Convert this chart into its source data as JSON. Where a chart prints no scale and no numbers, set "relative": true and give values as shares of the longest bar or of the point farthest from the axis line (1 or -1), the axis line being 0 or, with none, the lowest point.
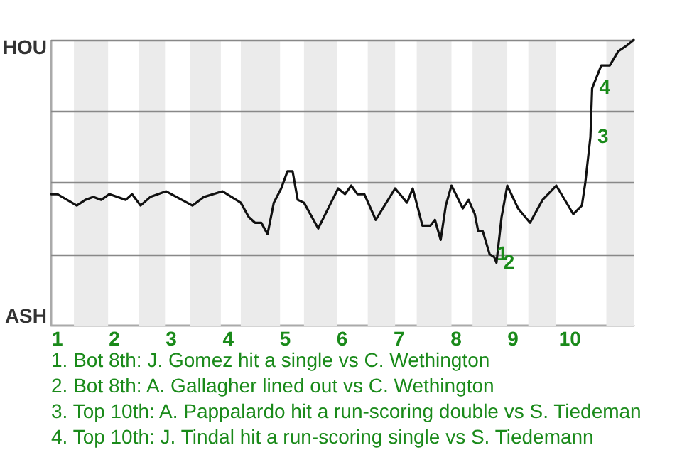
{
  "chart_data": {
    "type": "line",
    "relative": true,
    "x": [
      0.89,
      1.0,
      1.34,
      1.49,
      1.63,
      1.77,
      1.91,
      2.2,
      2.31,
      2.46,
      2.63,
      2.91,
      3.37,
      3.57,
      3.9,
      4.22,
      4.36,
      4.47,
      4.58,
      4.69,
      4.8,
      4.93,
      5.04,
      5.13,
      5.22,
      5.33,
      5.58,
      5.78,
      5.93,
      6.05,
      6.16,
      6.27,
      6.39,
      6.59,
      6.93,
      7.14,
      7.24,
      7.41,
      7.55,
      7.63,
      7.73,
      7.82,
      7.92,
      8.12,
      8.22,
      8.33,
      8.39,
      8.47,
      8.59,
      8.67,
      8.71,
      8.8,
      8.9,
      9.09,
      9.3,
      9.52,
      9.76,
      10.06,
      10.21,
      10.27,
      10.36,
      10.39,
      10.55,
      10.7,
      10.85,
      11.0,
      11.12
    ],
    "series": [
      {
        "color": "#111111",
        "values": [
          0.46,
          0.46,
          0.42,
          0.44,
          0.45,
          0.44,
          0.46,
          0.44,
          0.46,
          0.42,
          0.45,
          0.47,
          0.42,
          0.45,
          0.47,
          0.43,
          0.38,
          0.36,
          0.36,
          0.32,
          0.43,
          0.48,
          0.54,
          0.54,
          0.44,
          0.43,
          0.34,
          0.42,
          0.48,
          0.46,
          0.49,
          0.46,
          0.46,
          0.37,
          0.48,
          0.43,
          0.48,
          0.35,
          0.35,
          0.37,
          0.3,
          0.42,
          0.49,
          0.41,
          0.44,
          0.39,
          0.33,
          0.33,
          0.25,
          0.24,
          0.22,
          0.38,
          0.49,
          0.41,
          0.36,
          0.44,
          0.49,
          0.39,
          0.42,
          0.5,
          0.66,
          0.83,
          0.91,
          0.91,
          0.96,
          0.98,
          1.0
        ]
      }
    ],
    "xlim": [
      0.89,
      11.12
    ],
    "xticks": [
      1,
      2,
      3,
      4,
      5,
      6,
      7,
      8,
      9,
      10
    ],
    "marker": "none",
    "ref_lines": [
      {
        "axis": "y",
        "value": 0.25,
        "color": "#888888"
      },
      {
        "axis": "y",
        "value": 0.5,
        "color": "#888888"
      },
      {
        "axis": "y",
        "value": 0.75,
        "color": "#888888"
      },
      {
        "axis": "y",
        "value": 1,
        "color": "#888888"
      }
    ],
    "bands": [
      {
        "axis": "x",
        "from": 1.29,
        "to": 1.89,
        "color": "#ebebeb"
      },
      {
        "axis": "x",
        "from": 2.43,
        "to": 2.89,
        "color": "#ebebeb"
      },
      {
        "axis": "x",
        "from": 3.33,
        "to": 3.87,
        "color": "#ebebeb"
      },
      {
        "axis": "x",
        "from": 4.22,
        "to": 4.91,
        "color": "#ebebeb"
      },
      {
        "axis": "x",
        "from": 5.33,
        "to": 5.91,
        "color": "#ebebeb"
      },
      {
        "axis": "x",
        "from": 6.45,
        "to": 6.93,
        "color": "#ebebeb"
      },
      {
        "axis": "x",
        "from": 7.31,
        "to": 7.92,
        "color": "#ebebeb"
      },
      {
        "axis": "x",
        "from": 8.29,
        "to": 8.9,
        "color": "#ebebeb"
      },
      {
        "axis": "x",
        "from": 9.27,
        "to": 9.76,
        "color": "#ebebeb"
      },
      {
        "axis": "x",
        "from": 10.64,
        "to": 11.12,
        "color": "#ebebeb"
      }
    ],
    "annotations": [
      "HOU",
      "ASH",
      {
        "text": "1",
        "x": 8.59,
        "y": 0.25
      },
      {
        "text": "2",
        "x": 8.71,
        "y": 0.22
      },
      {
        "text": "3",
        "x": 10.36,
        "y": 0.66
      },
      {
        "text": "4",
        "x": 10.39,
        "y": 0.83
      },
      "1. Bot 8th: J. Gomez hit a single vs C. Wethington",
      "2. Bot 8th: A. Gallagher lined out vs C. Wethington",
      "3. Top 10th: A. Pappalardo hit a run-scoring double vs S. Tiedeman",
      "4. Top 10th: J. Tindal hit a run-scoring single vs S. Tiedemann"
    ]
  }
}
